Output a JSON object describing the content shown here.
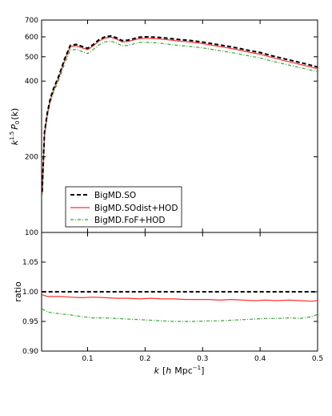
{
  "chart_data": [
    {
      "type": "line",
      "panel": "top",
      "ylabel_tex": [
        "k",
        "1.5",
        "P",
        "0",
        "(k)"
      ],
      "ylim": [
        100,
        700
      ],
      "yscale": "log",
      "xlim": [
        0.02,
        0.5
      ],
      "y_ticks": [
        100,
        200,
        400,
        500,
        600,
        700
      ],
      "y_tick_labels": [
        "100",
        "200",
        "400",
        "500",
        "600",
        "700"
      ],
      "x_ticks": [
        0.1,
        0.2,
        0.3,
        0.4,
        0.5
      ],
      "legend_position": "lower-left",
      "x": [
        0.021,
        0.025,
        0.03,
        0.035,
        0.04,
        0.05,
        0.06,
        0.07,
        0.08,
        0.09,
        0.1,
        0.11,
        0.12,
        0.13,
        0.14,
        0.15,
        0.16,
        0.17,
        0.18,
        0.19,
        0.2,
        0.22,
        0.24,
        0.26,
        0.28,
        0.3,
        0.32,
        0.34,
        0.36,
        0.38,
        0.4,
        0.42,
        0.44,
        0.46,
        0.48,
        0.5
      ],
      "series": [
        {
          "name": "BigMD.SO",
          "color": "#000000",
          "style": "dashed",
          "values": [
            145,
            250,
            300,
            340,
            370,
            420,
            490,
            555,
            560,
            550,
            540,
            560,
            585,
            600,
            605,
            595,
            580,
            582,
            590,
            598,
            600,
            598,
            592,
            585,
            580,
            572,
            562,
            552,
            542,
            530,
            520,
            505,
            492,
            480,
            468,
            455
          ]
        },
        {
          "name": "BigMD.SOdist+HOD",
          "color": "#ff3030",
          "style": "solid",
          "values": [
            143,
            245,
            296,
            335,
            365,
            415,
            484,
            548,
            553,
            543,
            533,
            553,
            578,
            593,
            598,
            588,
            573,
            575,
            583,
            591,
            592,
            590,
            584,
            577,
            572,
            564,
            554,
            544,
            534,
            522,
            512,
            497,
            484,
            472,
            460,
            448
          ]
        },
        {
          "name": "BigMD.FoF+HOD",
          "color": "#33aa33",
          "style": "dashdot",
          "values": [
            141,
            240,
            290,
            328,
            357,
            405,
            470,
            532,
            535,
            525,
            515,
            535,
            558,
            573,
            577,
            567,
            553,
            555,
            563,
            570,
            571,
            568,
            561,
            554,
            549,
            542,
            533,
            524,
            515,
            504,
            495,
            481,
            469,
            458,
            447,
            437
          ]
        }
      ]
    },
    {
      "type": "line",
      "panel": "bottom",
      "xlabel_tex": [
        "k",
        "[",
        "h",
        "Mpc",
        "−1",
        "]"
      ],
      "ylabel": "ratio",
      "xlim": [
        0.02,
        0.5
      ],
      "ylim": [
        0.9,
        1.1
      ],
      "x_ticks": [
        0.1,
        0.2,
        0.3,
        0.4,
        0.5
      ],
      "x_tick_labels": [
        "0.1",
        "0.2",
        "0.3",
        "0.4",
        "0.5"
      ],
      "y_ticks": [
        0.9,
        0.95,
        1.0,
        1.05
      ],
      "y_tick_labels": [
        "0.90",
        "0.95",
        "1.00",
        "1.05"
      ],
      "x": [
        0.021,
        0.03,
        0.05,
        0.07,
        0.09,
        0.11,
        0.13,
        0.15,
        0.17,
        0.19,
        0.21,
        0.23,
        0.25,
        0.27,
        0.29,
        0.31,
        0.33,
        0.35,
        0.37,
        0.39,
        0.41,
        0.43,
        0.45,
        0.47,
        0.49,
        0.5
      ],
      "series": [
        {
          "name": "BigMD.SO",
          "color": "#000000",
          "style": "dashed",
          "values": [
            1.0,
            1.0,
            1.0,
            1.0,
            1.0,
            1.0,
            1.0,
            1.0,
            1.0,
            1.0,
            1.0,
            1.0,
            1.0,
            1.0,
            1.0,
            1.0,
            1.0,
            1.0,
            1.0,
            1.0,
            1.0,
            1.0,
            1.0,
            1.0,
            1.0,
            1.0
          ]
        },
        {
          "name": "BigMD.SOdist+HOD",
          "color": "#ff3030",
          "style": "solid",
          "values": [
            0.995,
            0.992,
            0.992,
            0.991,
            0.99,
            0.991,
            0.99,
            0.989,
            0.989,
            0.988,
            0.989,
            0.988,
            0.988,
            0.987,
            0.987,
            0.987,
            0.986,
            0.987,
            0.986,
            0.985,
            0.986,
            0.985,
            0.986,
            0.985,
            0.984,
            0.985
          ]
        },
        {
          "name": "BigMD.FoF+HOD",
          "color": "#33aa33",
          "style": "dashdot",
          "values": [
            0.971,
            0.966,
            0.963,
            0.961,
            0.958,
            0.956,
            0.956,
            0.955,
            0.954,
            0.953,
            0.952,
            0.951,
            0.95,
            0.95,
            0.95,
            0.951,
            0.951,
            0.952,
            0.953,
            0.954,
            0.955,
            0.955,
            0.956,
            0.955,
            0.958,
            0.962
          ]
        }
      ]
    }
  ]
}
